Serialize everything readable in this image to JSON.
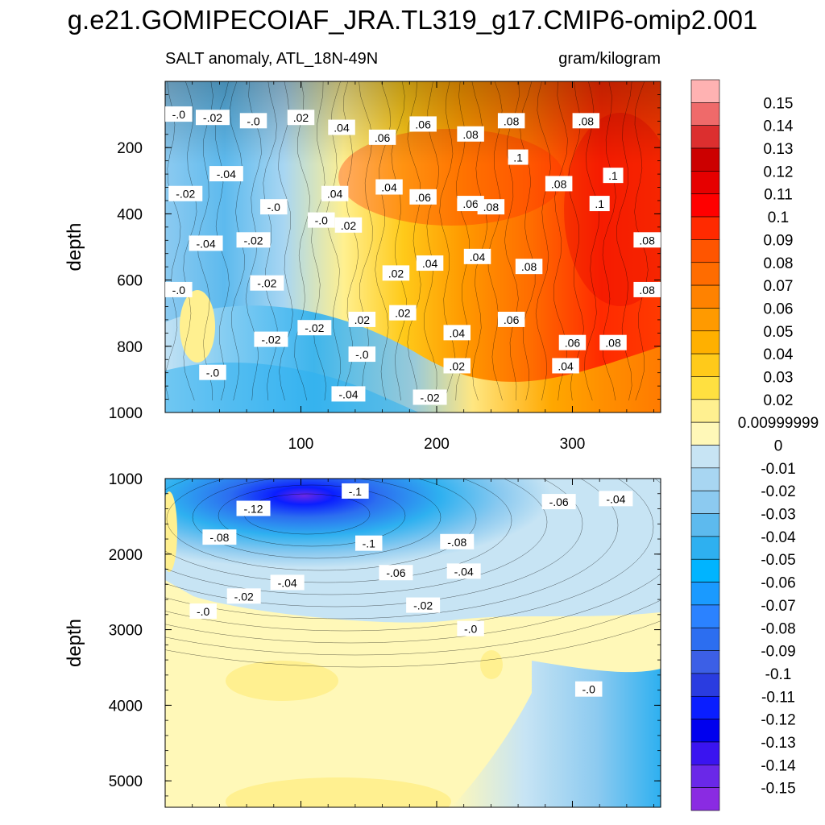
{
  "title": "g.e21.GOMIPECOIAF_JRA.TL319_g17.CMIP6-omip2.001",
  "subtitle_left": "SALT anomaly, ATL_18N-49N",
  "subtitle_right": "gram/kilogram",
  "chart_data": [
    {
      "type": "heatmap",
      "panel": "upper",
      "ylabel": "depth",
      "xlim": [
        0,
        365
      ],
      "ylim": [
        0,
        1000
      ],
      "y_reversed": true,
      "xticks": [
        "100",
        "200",
        "300"
      ],
      "xtick_values": [
        100,
        200,
        300
      ],
      "yticks": [
        "200",
        "400",
        "600",
        "800",
        "1000"
      ],
      "ytick_values": [
        200,
        400,
        600,
        800,
        1000
      ],
      "contour_labels": [
        {
          "x": 10,
          "y": 100,
          "text": "-.0"
        },
        {
          "x": 35,
          "y": 110,
          "text": "-.02"
        },
        {
          "x": 65,
          "y": 120,
          "text": "-.0"
        },
        {
          "x": 100,
          "y": 110,
          "text": ".02"
        },
        {
          "x": 130,
          "y": 140,
          "text": ".04"
        },
        {
          "x": 160,
          "y": 170,
          "text": ".06"
        },
        {
          "x": 190,
          "y": 130,
          "text": ".06"
        },
        {
          "x": 225,
          "y": 160,
          "text": ".08"
        },
        {
          "x": 255,
          "y": 120,
          "text": ".08"
        },
        {
          "x": 310,
          "y": 120,
          "text": ".08"
        },
        {
          "x": 45,
          "y": 280,
          "text": "-.04"
        },
        {
          "x": 15,
          "y": 340,
          "text": "-.02"
        },
        {
          "x": 260,
          "y": 230,
          "text": ".1"
        },
        {
          "x": 330,
          "y": 285,
          "text": ".1"
        },
        {
          "x": 290,
          "y": 310,
          "text": ".08"
        },
        {
          "x": 320,
          "y": 370,
          "text": ".1"
        },
        {
          "x": 80,
          "y": 380,
          "text": "-.0"
        },
        {
          "x": 125,
          "y": 340,
          "text": ".04"
        },
        {
          "x": 165,
          "y": 320,
          "text": ".04"
        },
        {
          "x": 190,
          "y": 350,
          "text": ".06"
        },
        {
          "x": 225,
          "y": 370,
          "text": ".06"
        },
        {
          "x": 240,
          "y": 380,
          "text": ".08"
        },
        {
          "x": 115,
          "y": 420,
          "text": "-.0"
        },
        {
          "x": 135,
          "y": 435,
          "text": ".02"
        },
        {
          "x": 30,
          "y": 490,
          "text": "-.04"
        },
        {
          "x": 65,
          "y": 480,
          "text": "-.02"
        },
        {
          "x": 355,
          "y": 480,
          "text": ".08"
        },
        {
          "x": 195,
          "y": 550,
          "text": ".04"
        },
        {
          "x": 230,
          "y": 530,
          "text": ".04"
        },
        {
          "x": 268,
          "y": 560,
          "text": ".08"
        },
        {
          "x": 170,
          "y": 580,
          "text": ".02"
        },
        {
          "x": 75,
          "y": 610,
          "text": "-.02"
        },
        {
          "x": 10,
          "y": 630,
          "text": "-.0"
        },
        {
          "x": 355,
          "y": 630,
          "text": ".08"
        },
        {
          "x": 175,
          "y": 700,
          "text": ".02"
        },
        {
          "x": 145,
          "y": 720,
          "text": ".02"
        },
        {
          "x": 255,
          "y": 720,
          "text": ".06"
        },
        {
          "x": 110,
          "y": 745,
          "text": "-.02"
        },
        {
          "x": 78,
          "y": 780,
          "text": "-.02"
        },
        {
          "x": 215,
          "y": 760,
          "text": ".04"
        },
        {
          "x": 300,
          "y": 790,
          "text": ".06"
        },
        {
          "x": 330,
          "y": 790,
          "text": ".08"
        },
        {
          "x": 145,
          "y": 825,
          "text": "-.0"
        },
        {
          "x": 215,
          "y": 860,
          "text": ".02"
        },
        {
          "x": 295,
          "y": 860,
          "text": ".04"
        },
        {
          "x": 35,
          "y": 880,
          "text": "-.0"
        },
        {
          "x": 135,
          "y": 945,
          "text": "-.04"
        },
        {
          "x": 195,
          "y": 955,
          "text": "-.02"
        }
      ]
    },
    {
      "type": "heatmap",
      "panel": "lower",
      "ylabel": "depth",
      "xlim": [
        0,
        365
      ],
      "ylim": [
        1000,
        5350
      ],
      "y_reversed": true,
      "yticks": [
        "1000",
        "2000",
        "3000",
        "4000",
        "5000"
      ],
      "ytick_values": [
        1000,
        2000,
        3000,
        4000,
        5000
      ],
      "contour_labels": [
        {
          "x": 140,
          "y": 1170,
          "text": "-.1"
        },
        {
          "x": 65,
          "y": 1400,
          "text": "-.12"
        },
        {
          "x": 290,
          "y": 1310,
          "text": "-.06"
        },
        {
          "x": 332,
          "y": 1270,
          "text": "-.04"
        },
        {
          "x": 40,
          "y": 1780,
          "text": "-.08"
        },
        {
          "x": 150,
          "y": 1860,
          "text": "-.1"
        },
        {
          "x": 215,
          "y": 1840,
          "text": "-.08"
        },
        {
          "x": 90,
          "y": 2380,
          "text": "-.04"
        },
        {
          "x": 170,
          "y": 2250,
          "text": "-.06"
        },
        {
          "x": 220,
          "y": 2230,
          "text": "-.04"
        },
        {
          "x": 58,
          "y": 2560,
          "text": "-.02"
        },
        {
          "x": 190,
          "y": 2680,
          "text": "-.02"
        },
        {
          "x": 28,
          "y": 2760,
          "text": "-.0"
        },
        {
          "x": 225,
          "y": 2990,
          "text": "-.0"
        },
        {
          "x": 312,
          "y": 3790,
          "text": "-.0"
        }
      ]
    }
  ],
  "colorbar": {
    "labels": [
      "0.15",
      "0.14",
      "0.13",
      "0.12",
      "0.11",
      "0.1",
      "0.09",
      "0.08",
      "0.07",
      "0.06",
      "0.05",
      "0.04",
      "0.03",
      "0.02",
      "0.00999999",
      "0",
      "-0.01",
      "-0.02",
      "-0.03",
      "-0.04",
      "-0.05",
      "-0.06",
      "-0.07",
      "-0.08",
      "-0.09",
      "-0.1",
      "-0.11",
      "-0.12",
      "-0.13",
      "-0.14",
      "-0.15"
    ],
    "colors": [
      "#ffb2b2",
      "#ef6a6a",
      "#dc2f2f",
      "#cc0000",
      "#e60000",
      "#ff0000",
      "#ff2a00",
      "#ff5500",
      "#ff6c00",
      "#ff8200",
      "#ff9a00",
      "#ffb000",
      "#ffca1a",
      "#ffe040",
      "#fff090",
      "#fff8b8",
      "#c7e4f4",
      "#a8d6f2",
      "#8ccaf0",
      "#5dbaee",
      "#2eb0f0",
      "#00b4ff",
      "#1a9aff",
      "#2b82ff",
      "#2c6ef0",
      "#3c5fe6",
      "#2a3ce0",
      "#0a1eff",
      "#0000ee",
      "#3a14f0",
      "#6a28e8",
      "#8a2be2"
    ]
  }
}
